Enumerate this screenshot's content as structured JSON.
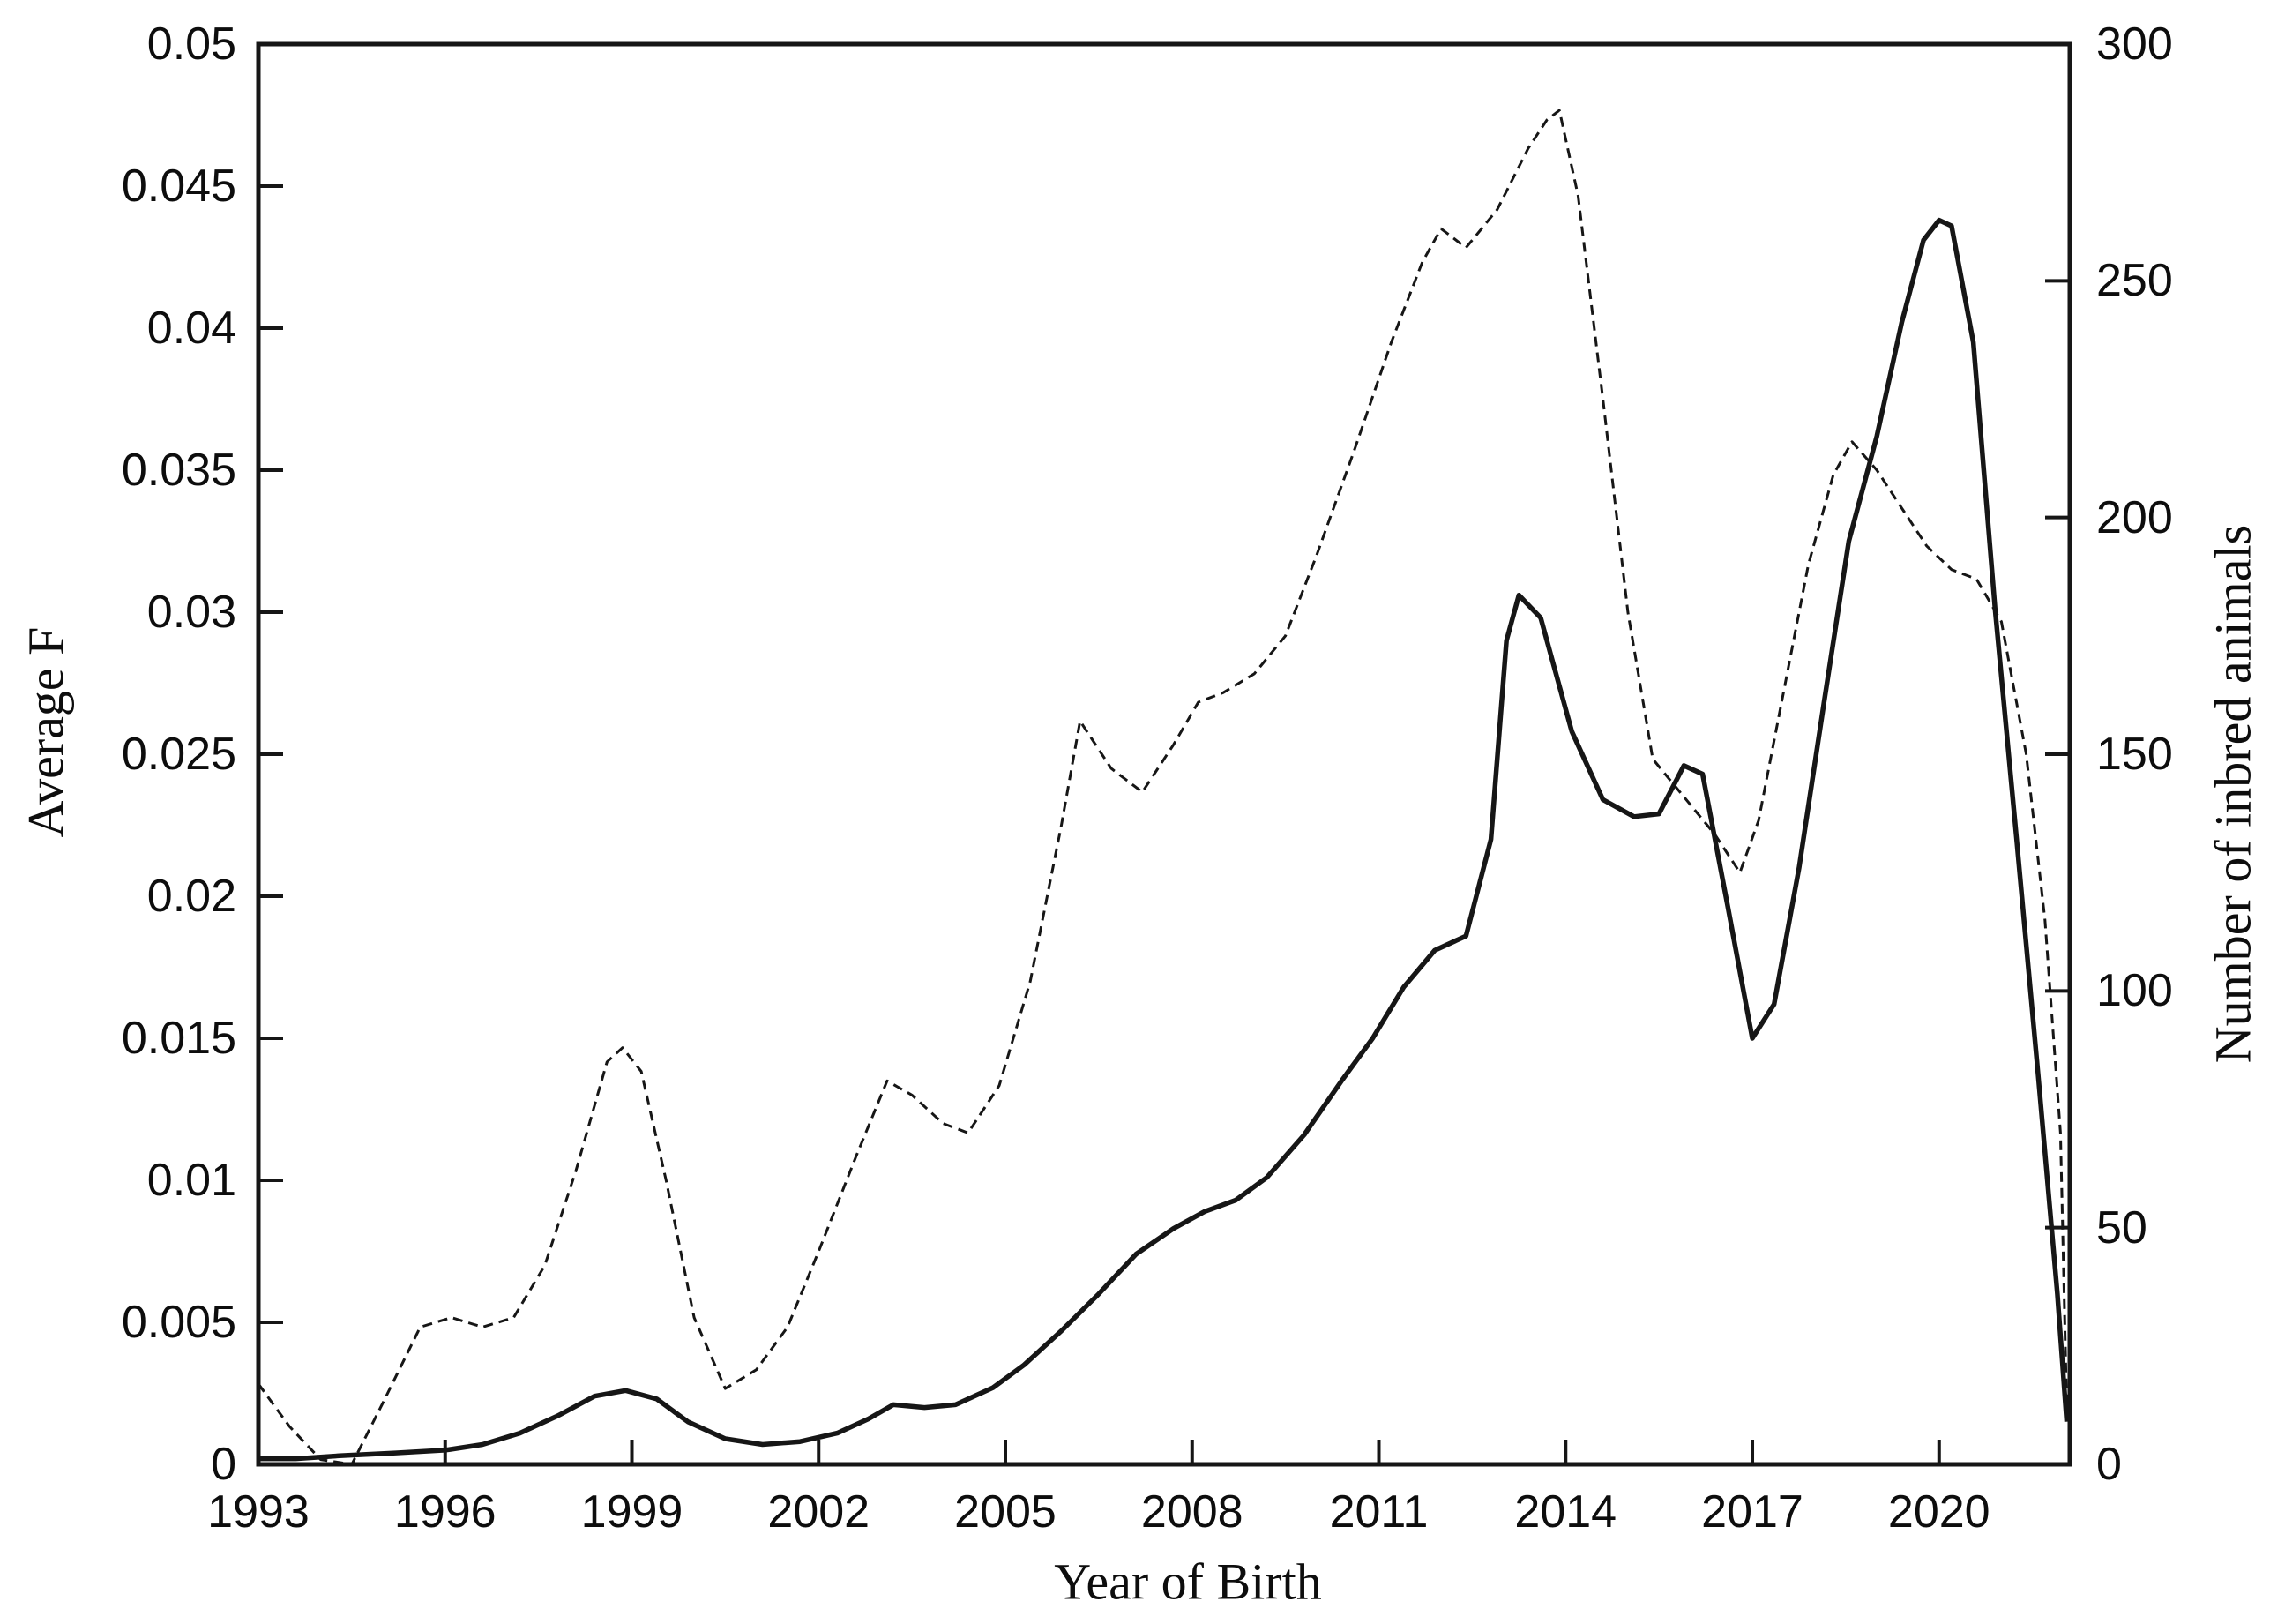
{
  "figure": {
    "left_axis_title": "Average F",
    "right_axis_title": "Number of inbred animals",
    "x_axis_title": "Year of Birth"
  },
  "chart_data": {
    "type": "line",
    "title": "",
    "xlabel": "Year of Birth",
    "ylabel_left": "Average F",
    "ylabel_right": "Number of inbred animals",
    "grid": false,
    "legend": "none",
    "x_range": [
      1993,
      2022.1
    ],
    "y_left_range": [
      0,
      0.05
    ],
    "y_right_range": [
      0,
      300
    ],
    "x_ticks": [
      1993,
      1996,
      1999,
      2002,
      2005,
      2008,
      2011,
      2014,
      2017,
      2020
    ],
    "y_left_ticks": [
      0,
      0.005,
      0.01,
      0.015,
      0.02,
      0.025,
      0.03,
      0.035,
      0.04,
      0.045,
      0.05
    ],
    "y_right_ticks": [
      0,
      50,
      100,
      150,
      200,
      250,
      300
    ],
    "line_color": "#161616",
    "series": [
      {
        "name": "Average F",
        "axis": "left",
        "style": "solid-thick",
        "points": [
          [
            1993.0,
            0.0002
          ],
          [
            1993.6,
            0.0002
          ],
          [
            1994.3,
            0.0003
          ],
          [
            1995.2,
            0.0004
          ],
          [
            1996.0,
            0.0005
          ],
          [
            1996.6,
            0.0007
          ],
          [
            1997.2,
            0.0011
          ],
          [
            1997.8,
            0.0017
          ],
          [
            1998.4,
            0.0024
          ],
          [
            1998.9,
            0.0026
          ],
          [
            1999.4,
            0.0023
          ],
          [
            1999.9,
            0.0015
          ],
          [
            2000.5,
            0.0009
          ],
          [
            2001.1,
            0.0007
          ],
          [
            2001.7,
            0.0008
          ],
          [
            2002.3,
            0.0011
          ],
          [
            2002.8,
            0.0016
          ],
          [
            2003.2,
            0.0021
          ],
          [
            2003.7,
            0.002
          ],
          [
            2004.2,
            0.0021
          ],
          [
            2004.8,
            0.0027
          ],
          [
            2005.3,
            0.0035
          ],
          [
            2005.9,
            0.0047
          ],
          [
            2006.5,
            0.006
          ],
          [
            2007.1,
            0.0074
          ],
          [
            2007.7,
            0.0083
          ],
          [
            2008.2,
            0.0089
          ],
          [
            2008.7,
            0.0093
          ],
          [
            2009.2,
            0.0101
          ],
          [
            2009.8,
            0.0116
          ],
          [
            2010.4,
            0.0135
          ],
          [
            2010.9,
            0.015
          ],
          [
            2011.4,
            0.0168
          ],
          [
            2011.9,
            0.0181
          ],
          [
            2012.4,
            0.0186
          ],
          [
            2012.8,
            0.022
          ],
          [
            2013.05,
            0.029
          ],
          [
            2013.25,
            0.0306
          ],
          [
            2013.6,
            0.0298
          ],
          [
            2014.1,
            0.0258
          ],
          [
            2014.6,
            0.0234
          ],
          [
            2015.1,
            0.0228
          ],
          [
            2015.5,
            0.0229
          ],
          [
            2015.9,
            0.0246
          ],
          [
            2016.2,
            0.0243
          ],
          [
            2016.6,
            0.0197
          ],
          [
            2017.0,
            0.015
          ],
          [
            2017.35,
            0.0162
          ],
          [
            2017.75,
            0.021
          ],
          [
            2018.15,
            0.0268
          ],
          [
            2018.55,
            0.0325
          ],
          [
            2019.0,
            0.0362
          ],
          [
            2019.4,
            0.0402
          ],
          [
            2019.75,
            0.0431
          ],
          [
            2020.0,
            0.0438
          ],
          [
            2020.2,
            0.0436
          ],
          [
            2020.55,
            0.0395
          ],
          [
            2020.9,
            0.0301
          ],
          [
            2021.25,
            0.0219
          ],
          [
            2021.6,
            0.0135
          ],
          [
            2021.9,
            0.006
          ],
          [
            2022.05,
            0.0015
          ]
        ]
      },
      {
        "name": "Number of inbred animals",
        "axis": "right",
        "style": "dashed-thin",
        "points": [
          [
            1993.0,
            17
          ],
          [
            1993.5,
            8
          ],
          [
            1994.0,
            1
          ],
          [
            1994.5,
            0
          ],
          [
            1995.0,
            13
          ],
          [
            1995.6,
            29
          ],
          [
            1996.1,
            31
          ],
          [
            1996.6,
            29
          ],
          [
            1997.1,
            31
          ],
          [
            1997.6,
            42
          ],
          [
            1998.1,
            62
          ],
          [
            1998.6,
            85
          ],
          [
            1998.85,
            88
          ],
          [
            1999.15,
            83
          ],
          [
            1999.55,
            60
          ],
          [
            2000.0,
            31
          ],
          [
            2000.5,
            16
          ],
          [
            2001.0,
            20
          ],
          [
            2001.5,
            29
          ],
          [
            2002.0,
            45
          ],
          [
            2002.6,
            65
          ],
          [
            2003.1,
            81
          ],
          [
            2003.5,
            78
          ],
          [
            2004.0,
            72
          ],
          [
            2004.4,
            70
          ],
          [
            2004.9,
            80
          ],
          [
            2005.4,
            102
          ],
          [
            2005.9,
            135
          ],
          [
            2006.2,
            157
          ],
          [
            2006.7,
            147
          ],
          [
            2007.2,
            142
          ],
          [
            2007.7,
            152
          ],
          [
            2008.1,
            161
          ],
          [
            2008.5,
            163
          ],
          [
            2009.0,
            167
          ],
          [
            2009.5,
            175
          ],
          [
            2010.0,
            192
          ],
          [
            2010.6,
            214
          ],
          [
            2011.2,
            237
          ],
          [
            2011.7,
            254
          ],
          [
            2012.0,
            261
          ],
          [
            2012.4,
            257
          ],
          [
            2012.9,
            265
          ],
          [
            2013.4,
            278
          ],
          [
            2013.7,
            284
          ],
          [
            2013.9,
            286
          ],
          [
            2014.2,
            268
          ],
          [
            2014.6,
            225
          ],
          [
            2015.0,
            180
          ],
          [
            2015.4,
            149
          ],
          [
            2015.9,
            141
          ],
          [
            2016.4,
            133
          ],
          [
            2016.8,
            125
          ],
          [
            2017.1,
            136
          ],
          [
            2017.5,
            163
          ],
          [
            2017.9,
            190
          ],
          [
            2018.3,
            209
          ],
          [
            2018.6,
            216
          ],
          [
            2019.0,
            210
          ],
          [
            2019.4,
            202
          ],
          [
            2019.8,
            194
          ],
          [
            2020.2,
            189
          ],
          [
            2020.6,
            187
          ],
          [
            2021.0,
            178
          ],
          [
            2021.4,
            150
          ],
          [
            2021.7,
            115
          ],
          [
            2021.95,
            70
          ],
          [
            2022.05,
            12
          ]
        ]
      }
    ]
  }
}
